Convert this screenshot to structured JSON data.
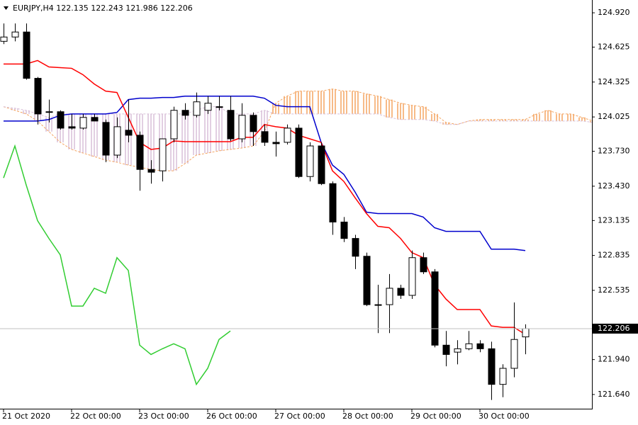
{
  "chart_data": {
    "type": "candlestick",
    "title": "EURJPY,H4  122.135 122.243 121.986 122.206",
    "categories": [
      "21 Oct 2020",
      null,
      null,
      null,
      null,
      null,
      "22 Oct 00:00",
      null,
      null,
      null,
      null,
      null,
      "23 Oct 00:00",
      null,
      null,
      null,
      null,
      null,
      "26 Oct 00:00",
      null,
      null,
      null,
      null,
      null,
      "27 Oct 00:00",
      null,
      null,
      null,
      null,
      null,
      "28 Oct 00:00",
      null,
      null,
      null,
      null,
      null,
      "29 Oct 00:00",
      null,
      null,
      null,
      null,
      null,
      "30 Oct 00:00",
      null,
      null,
      null,
      null,
      null,
      null,
      null,
      null,
      null,
      null
    ],
    "open": [
      124.675,
      124.712,
      124.755,
      124.357,
      124.064,
      124.07,
      123.941,
      123.929,
      124.021,
      123.978,
      123.697,
      123.911,
      123.868,
      123.574,
      123.562,
      123.837,
      124.082,
      124.039,
      124.082,
      124.113,
      124.082,
      123.837,
      124.039,
      123.899,
      123.807,
      123.807,
      123.929,
      123.513,
      123.776,
      123.452,
      123.122,
      122.981,
      122.828,
      122.412,
      122.412,
      122.553,
      122.492,
      122.816,
      122.694,
      122.064,
      122.004,
      122.033,
      122.076,
      122.033,
      121.727,
      121.865,
      122.135,
      null,
      null,
      null,
      null,
      null,
      null
    ],
    "high": [
      124.828,
      124.828,
      124.828,
      124.369,
      124.174,
      124.082,
      124.051,
      124.051,
      124.051,
      124.003,
      124.021,
      124.174,
      123.899,
      123.654,
      123.807,
      124.113,
      124.143,
      124.235,
      124.204,
      124.204,
      124.204,
      124.143,
      124.064,
      123.96,
      123.899,
      123.96,
      123.96,
      123.807,
      123.807,
      123.471,
      123.165,
      123.012,
      122.859,
      122.583,
      122.675,
      122.583,
      122.877,
      122.859,
      122.718,
      122.186,
      122.107,
      122.186,
      122.107,
      122.094,
      121.9,
      122.431,
      122.243,
      null,
      null,
      null,
      null,
      null,
      null
    ],
    "low": [
      124.651,
      124.675,
      124.345,
      123.96,
      123.978,
      123.917,
      123.917,
      123.917,
      123.99,
      123.636,
      123.672,
      123.807,
      123.391,
      123.452,
      123.471,
      123.807,
      124.003,
      124.021,
      124.051,
      124.082,
      123.819,
      123.807,
      123.776,
      123.776,
      123.685,
      123.788,
      123.501,
      123.471,
      123.44,
      123.012,
      122.95,
      122.718,
      122.4,
      122.168,
      122.168,
      122.461,
      122.461,
      122.675,
      122.045,
      121.882,
      121.899,
      122.021,
      122.003,
      121.593,
      121.617,
      121.788,
      121.986,
      null,
      null,
      null,
      null,
      null,
      null
    ],
    "close": [
      124.712,
      124.755,
      124.357,
      124.051,
      124.07,
      123.929,
      123.929,
      124.021,
      123.99,
      123.697,
      123.941,
      123.868,
      123.574,
      123.55,
      123.837,
      124.082,
      124.039,
      124.155,
      124.143,
      124.113,
      123.837,
      124.039,
      123.899,
      123.807,
      123.795,
      123.929,
      123.513,
      123.776,
      123.452,
      123.122,
      122.981,
      122.828,
      122.412,
      122.412,
      122.553,
      122.492,
      122.816,
      122.694,
      122.064,
      121.984,
      122.033,
      122.076,
      122.033,
      121.727,
      121.865,
      122.113,
      122.206,
      null,
      null,
      null,
      null,
      null,
      null
    ],
    "up_color": "#ffffff",
    "down_color": "#000000",
    "wick_color": "#000000",
    "series": [
      {
        "color": "#f4a460",
        "style": "dashed",
        "fill": "hatch",
        "values": [
          124.113,
          124.082,
          124.051,
          123.99,
          123.899,
          123.807,
          123.746,
          123.715,
          123.685,
          123.654,
          123.636,
          123.611,
          123.593,
          123.574,
          123.562,
          123.562,
          123.624,
          123.697,
          123.715,
          123.734,
          123.746,
          123.758,
          123.776,
          123.899,
          124.143,
          124.204,
          124.247,
          124.247,
          124.247,
          124.265,
          124.247,
          124.247,
          124.223,
          124.204,
          124.174,
          124.143,
          124.125,
          124.113,
          124.051,
          123.978,
          123.96,
          123.99,
          124.003,
          124.003,
          124.003,
          124.003,
          124.003,
          124.051,
          124.082,
          124.051,
          124.051,
          124.021,
          123.99
        ]
      },
      {
        "color": "#d8bfd8",
        "style": "dashed",
        "fill": "hatch",
        "values": [
          124.113,
          124.1,
          124.082,
          124.051,
          124.021,
          124.051,
          124.051,
          124.051,
          124.051,
          124.051,
          124.051,
          124.051,
          124.051,
          124.051,
          124.051,
          124.051,
          124.051,
          124.082,
          124.113,
          124.113,
          124.051,
          124.051,
          124.051,
          124.082,
          124.051,
          124.051,
          124.051,
          124.051,
          124.051,
          124.051,
          124.051,
          124.051,
          124.051,
          124.051,
          124.021,
          124.003,
          124.003,
          124.003,
          123.99,
          123.96,
          123.96,
          123.99,
          123.99,
          123.99,
          123.99,
          123.99,
          123.99,
          123.99,
          123.99,
          123.99,
          123.99,
          123.99,
          123.978
        ]
      },
      {
        "color": "#32cd32",
        "style": "solid",
        "values": [
          123.501,
          123.776,
          123.44,
          123.134,
          122.981,
          122.84,
          122.4,
          122.4,
          122.553,
          122.51,
          122.816,
          122.706,
          122.064,
          121.984,
          122.033,
          122.076,
          122.033,
          121.727,
          121.865,
          122.113,
          122.186,
          null,
          null,
          null,
          null,
          null,
          null,
          null,
          null,
          null,
          null,
          null,
          null,
          null,
          null,
          null,
          null,
          null,
          null,
          null,
          null,
          null,
          null,
          null,
          null,
          null,
          null,
          null,
          null,
          null,
          null,
          null,
          null
        ]
      },
      {
        "color": "#0000cd",
        "style": "solid",
        "values": [
          123.99,
          123.99,
          123.99,
          123.99,
          124.003,
          124.039,
          124.051,
          124.051,
          124.051,
          124.051,
          124.064,
          124.174,
          124.186,
          124.186,
          124.192,
          124.192,
          124.204,
          124.204,
          124.204,
          124.204,
          124.204,
          124.204,
          124.204,
          124.186,
          124.125,
          124.113,
          124.113,
          124.113,
          123.807,
          123.611,
          123.532,
          123.379,
          123.207,
          123.195,
          123.195,
          123.195,
          123.195,
          123.165,
          123.073,
          123.042,
          123.042,
          123.042,
          123.042,
          122.889,
          122.889,
          122.889,
          122.877,
          null,
          null,
          null,
          null,
          null,
          null
        ]
      },
      {
        "color": "#ff0000",
        "style": "solid",
        "values": [
          124.48,
          124.48,
          124.48,
          124.51,
          124.455,
          124.449,
          124.443,
          124.388,
          124.308,
          124.247,
          124.235,
          124.021,
          123.807,
          123.746,
          123.758,
          123.819,
          123.813,
          123.813,
          123.813,
          123.813,
          123.813,
          123.85,
          123.85,
          123.96,
          123.941,
          123.929,
          123.868,
          123.837,
          123.807,
          123.562,
          123.471,
          123.33,
          123.195,
          123.085,
          123.073,
          122.981,
          122.859,
          122.816,
          122.583,
          122.461,
          122.37,
          122.37,
          122.37,
          122.229,
          122.217,
          122.217,
          122.156,
          null,
          null,
          null,
          null,
          null,
          null
        ]
      }
    ],
    "ylim": [
      121.524,
      125.03
    ],
    "yticks": [
      {
        "value": 124.92,
        "label": "124.920"
      },
      124.625,
      124.325,
      124.025,
      {
        "value": 123.73,
        "label": "123.730"
      },
      {
        "value": 123.43,
        "label": "123.430"
      },
      123.135,
      122.835,
      122.535,
      {
        "value": 121.94,
        "label": "121.940"
      },
      {
        "value": 121.64,
        "label": "121.640"
      }
    ],
    "current_price": 122.206,
    "grid": false
  }
}
